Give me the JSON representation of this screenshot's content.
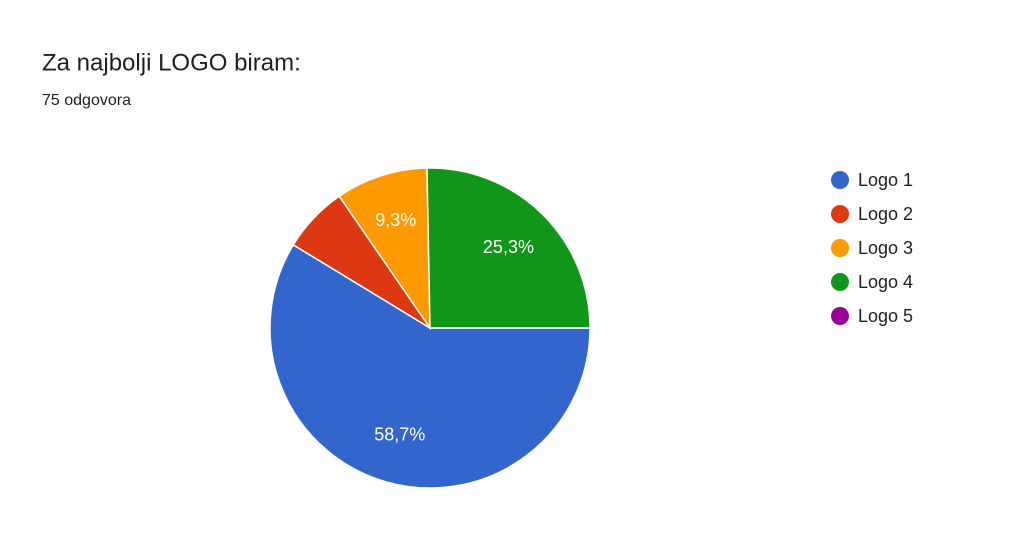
{
  "chart_data": {
    "type": "pie",
    "title": "Za najbolji LOGO biram:",
    "subtitle": "75 odgovora",
    "categories": [
      "Logo 1",
      "Logo 2",
      "Logo 3",
      "Logo 4",
      "Logo 5"
    ],
    "values": [
      58.7,
      6.7,
      9.3,
      25.3,
      0
    ],
    "value_labels": [
      "58,7%",
      null,
      "9,3%",
      "25,3%",
      null
    ],
    "colors": [
      "#3366cc",
      "#dc3912",
      "#ff9900",
      "#109618",
      "#990099"
    ],
    "legend": "right"
  }
}
